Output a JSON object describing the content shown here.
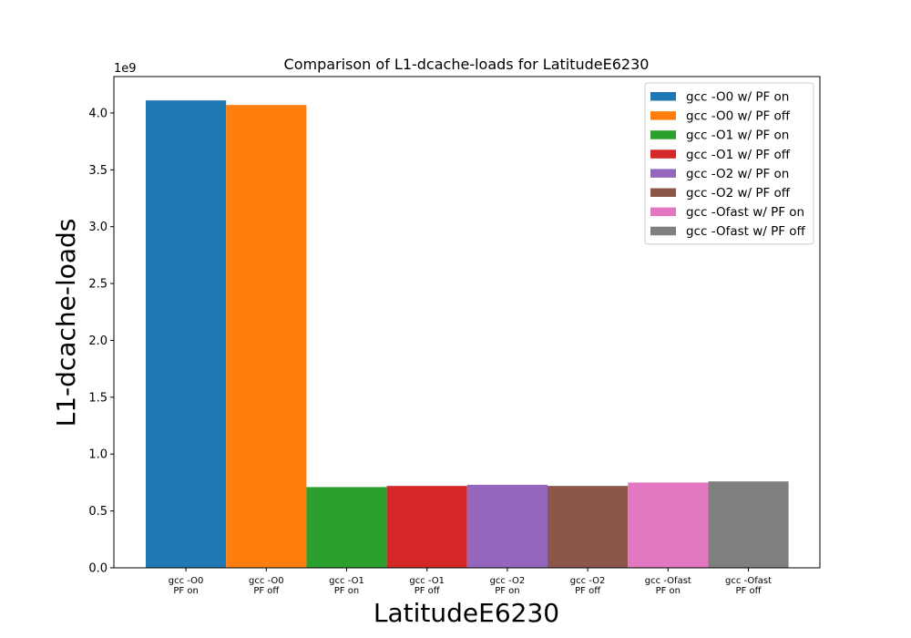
{
  "chart_data": {
    "type": "bar",
    "title": "Comparison of L1-dcache-loads for LatitudeE6230",
    "xlabel": "LatitudeE6230",
    "ylabel": "L1-dcache-loads",
    "y_offset_label": "1e9",
    "y_scale": 1000000000,
    "ylim": [
      0,
      4.32
    ],
    "yticks": [
      0.0,
      0.5,
      1.0,
      1.5,
      2.0,
      2.5,
      3.0,
      3.5,
      4.0
    ],
    "ytick_labels": [
      "0.0",
      "0.5",
      "1.0",
      "1.5",
      "2.0",
      "2.5",
      "3.0",
      "3.5",
      "4.0"
    ],
    "grid": false,
    "legend_position": "top-right",
    "categories": [
      [
        "gcc -O0",
        "PF on"
      ],
      [
        "gcc -O0",
        "PF off"
      ],
      [
        "gcc -O1",
        "PF on"
      ],
      [
        "gcc -O1",
        "PF off"
      ],
      [
        "gcc -O2",
        "PF on"
      ],
      [
        "gcc -O2",
        "PF off"
      ],
      [
        "gcc -Ofast",
        "PF on"
      ],
      [
        "gcc -Ofast",
        "PF off"
      ]
    ],
    "series": [
      {
        "name": "gcc -O0 w/ PF on",
        "value": 4.11,
        "color": "#1f77b4"
      },
      {
        "name": "gcc -O0 w/ PF off",
        "value": 4.07,
        "color": "#ff7f0e"
      },
      {
        "name": "gcc -O1 w/ PF on",
        "value": 0.71,
        "color": "#2ca02c"
      },
      {
        "name": "gcc -O1 w/ PF off",
        "value": 0.72,
        "color": "#d62728"
      },
      {
        "name": "gcc -O2 w/ PF on",
        "value": 0.73,
        "color": "#9467bd"
      },
      {
        "name": "gcc -O2 w/ PF off",
        "value": 0.72,
        "color": "#8c564b"
      },
      {
        "name": "gcc -Ofast w/ PF on",
        "value": 0.75,
        "color": "#e377c2"
      },
      {
        "name": "gcc -Ofast w/ PF off",
        "value": 0.76,
        "color": "#7f7f7f"
      }
    ]
  }
}
